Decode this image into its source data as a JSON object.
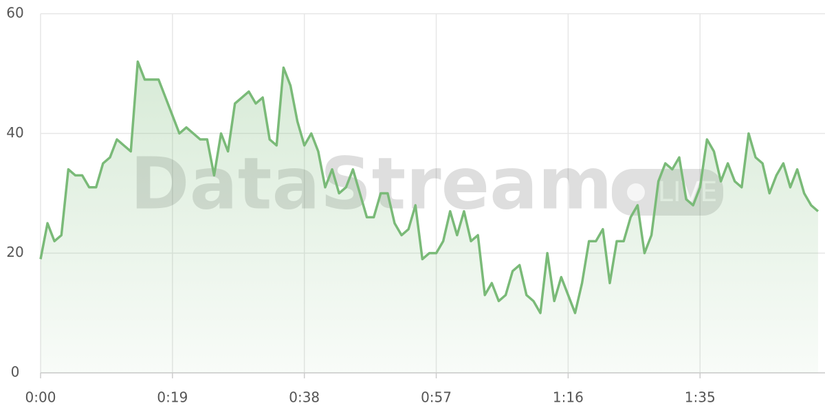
{
  "chart_data": {
    "type": "line",
    "watermark": "DataStream",
    "badge": "LIVE",
    "x": [
      0,
      1,
      2,
      3,
      4,
      5,
      6,
      7,
      8,
      9,
      10,
      11,
      12,
      13,
      14,
      15,
      16,
      17,
      18,
      19,
      20,
      21,
      22,
      23,
      24,
      25,
      26,
      27,
      28,
      29,
      30,
      31,
      32,
      33,
      34,
      35,
      36,
      37,
      38,
      39,
      40,
      41,
      42,
      43,
      44,
      45,
      46,
      47,
      48,
      49,
      50,
      51,
      52,
      53,
      54,
      55,
      56,
      57,
      58,
      59,
      60,
      61,
      62,
      63,
      64,
      65,
      66,
      67,
      68,
      69,
      70,
      71,
      72,
      73,
      74,
      75,
      76,
      77,
      78,
      79,
      80,
      81,
      82,
      83,
      84,
      85,
      86,
      87,
      88,
      89,
      90,
      91,
      92,
      93,
      94,
      95,
      96,
      97,
      98,
      99,
      100,
      101,
      102,
      103,
      104,
      105,
      106,
      107,
      108,
      109,
      110,
      111,
      112
    ],
    "series": [
      {
        "color": "#7aba78",
        "values": [
          19,
          25,
          22,
          23,
          34,
          33,
          33,
          31,
          31,
          35,
          36,
          39,
          38,
          37,
          52,
          49,
          49,
          49,
          46,
          43,
          40,
          41,
          40,
          39,
          39,
          33,
          40,
          37,
          45,
          46,
          47,
          45,
          46,
          39,
          38,
          51,
          48,
          42,
          38,
          40,
          37,
          31,
          34,
          30,
          31,
          34,
          30,
          26,
          26,
          30,
          30,
          25,
          23,
          24,
          28,
          19,
          20,
          20,
          22,
          27,
          23,
          27,
          22,
          23,
          13,
          15,
          12,
          13,
          17,
          18,
          13,
          12,
          10,
          20,
          12,
          16,
          13,
          10,
          15,
          22,
          22,
          24,
          15,
          22,
          22,
          26,
          28,
          20,
          23,
          32,
          35,
          34,
          36,
          29,
          28,
          31,
          39,
          37,
          32,
          35,
          32,
          31,
          40,
          36,
          35,
          30,
          33,
          35,
          31,
          34,
          30,
          28,
          27
        ]
      }
    ],
    "xlim": [
      0,
      113
    ],
    "xticks": [
      {
        "value": 0,
        "label": "0:00"
      },
      {
        "value": 19,
        "label": "0:19"
      },
      {
        "value": 38,
        "label": "0:38"
      },
      {
        "value": 57,
        "label": "0:57"
      },
      {
        "value": 76,
        "label": "1:16"
      },
      {
        "value": 95,
        "label": "1:35"
      }
    ],
    "ylim": [
      0,
      60
    ],
    "yticks": [
      0,
      20,
      40,
      60
    ],
    "grid": true,
    "area": true
  }
}
